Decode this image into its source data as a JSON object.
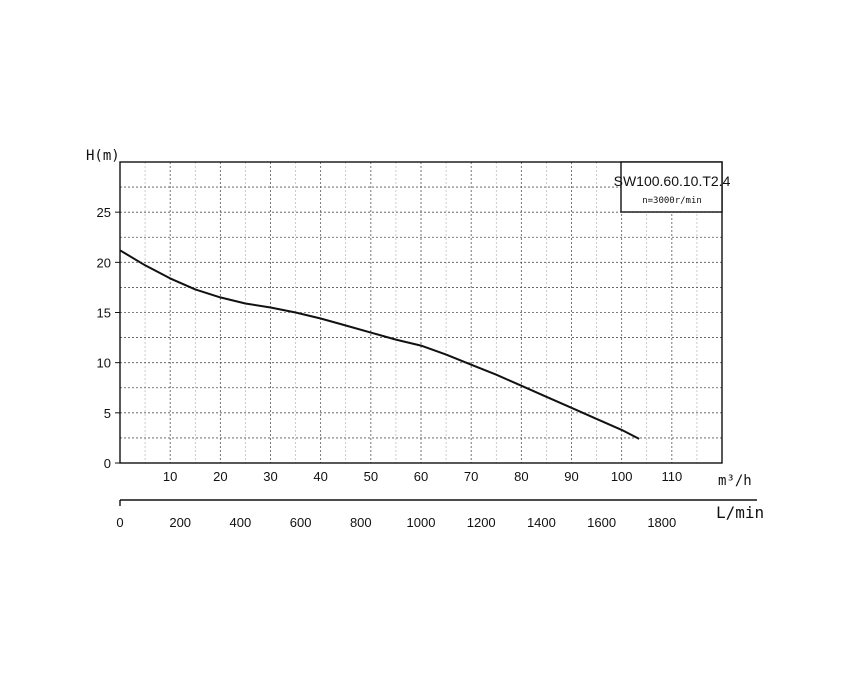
{
  "chart_data": {
    "type": "line",
    "ylabel": "H(m)",
    "xlabel": "m³/h",
    "x2label": "L/min",
    "legend": {
      "model": "SW100.60.10.T2.4",
      "speed": "n=3000r/min",
      "placement": "top-right"
    },
    "xlim": [
      0,
      120
    ],
    "ylim": [
      0,
      30
    ],
    "x_ticks": [
      10,
      20,
      30,
      40,
      50,
      60,
      70,
      80,
      90,
      100,
      110
    ],
    "y_ticks": [
      0,
      5,
      10,
      15,
      20,
      25
    ],
    "x2lim": [
      0,
      2000
    ],
    "x2_ticks": [
      0,
      200,
      400,
      600,
      800,
      1000,
      1200,
      1400,
      1600,
      1800
    ],
    "x_minor_grid_step": 5,
    "y_minor_grid_step": 2.5,
    "grid": "dashed",
    "series": [
      {
        "x": [
          0,
          5,
          10,
          15,
          20,
          25,
          30,
          35,
          40,
          45,
          50,
          55,
          60,
          65,
          70,
          75,
          80,
          85,
          90,
          95,
          100,
          103.5
        ],
        "y": [
          21.2,
          19.7,
          18.4,
          17.3,
          16.5,
          15.9,
          15.5,
          15.0,
          14.4,
          13.7,
          13.0,
          12.3,
          11.7,
          10.8,
          9.8,
          8.8,
          7.7,
          6.6,
          5.5,
          4.4,
          3.3,
          2.4
        ]
      }
    ]
  }
}
